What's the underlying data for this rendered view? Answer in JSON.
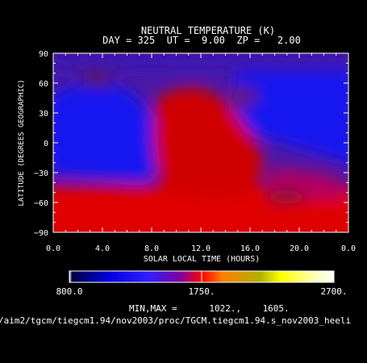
{
  "chart_data": {
    "type": "heatmap",
    "title": "NEUTRAL TEMPERATURE (K)",
    "subtitle": "DAY = 325  UT =  9.00  ZP =   2.00",
    "xlabel": "SOLAR LOCAL TIME (HOURS)",
    "ylabel": "LATITUDE (DEGREES GEOGRAPHIC)",
    "xlim": [
      0,
      24
    ],
    "ylim": [
      -90,
      90
    ],
    "x_ticks": [
      "0.0",
      "4.0",
      "8.0",
      "12.0",
      "16.0",
      "20.0",
      "0.0"
    ],
    "y_ticks": [
      "90",
      "60",
      "30",
      "0",
      "-30",
      "-60",
      "-90"
    ],
    "colorbar": {
      "min_label": "800.0",
      "mid_label": "1750.",
      "max_label": "2700.",
      "range": [
        800,
        2700
      ],
      "colors": [
        "#ffffff",
        "#000050",
        "#0000ff",
        "#8000a0",
        "#ff0000",
        "#ff8000",
        "#ffff00",
        "#ffffc0",
        "#ffffff"
      ]
    },
    "field": {
      "min": 1022,
      "max": 1605,
      "features": [
        {
          "name": "cold minimum",
          "lt": 3.5,
          "lat": 62
        },
        {
          "name": "cold minimum",
          "lt": 16.5,
          "lat": 58
        },
        {
          "name": "cold minimum",
          "lt": 20.5,
          "lat": -58
        },
        {
          "name": "warm maximum",
          "lt": 12,
          "lat": 10
        }
      ]
    }
  },
  "footer": {
    "minmax": "MIN,MAX =      1022.,    1605.",
    "path": "/aim2/tgcm/tiegcm1.94/nov2003/proc/TGCM.tiegcm1.94.s_nov2003_heeli"
  }
}
